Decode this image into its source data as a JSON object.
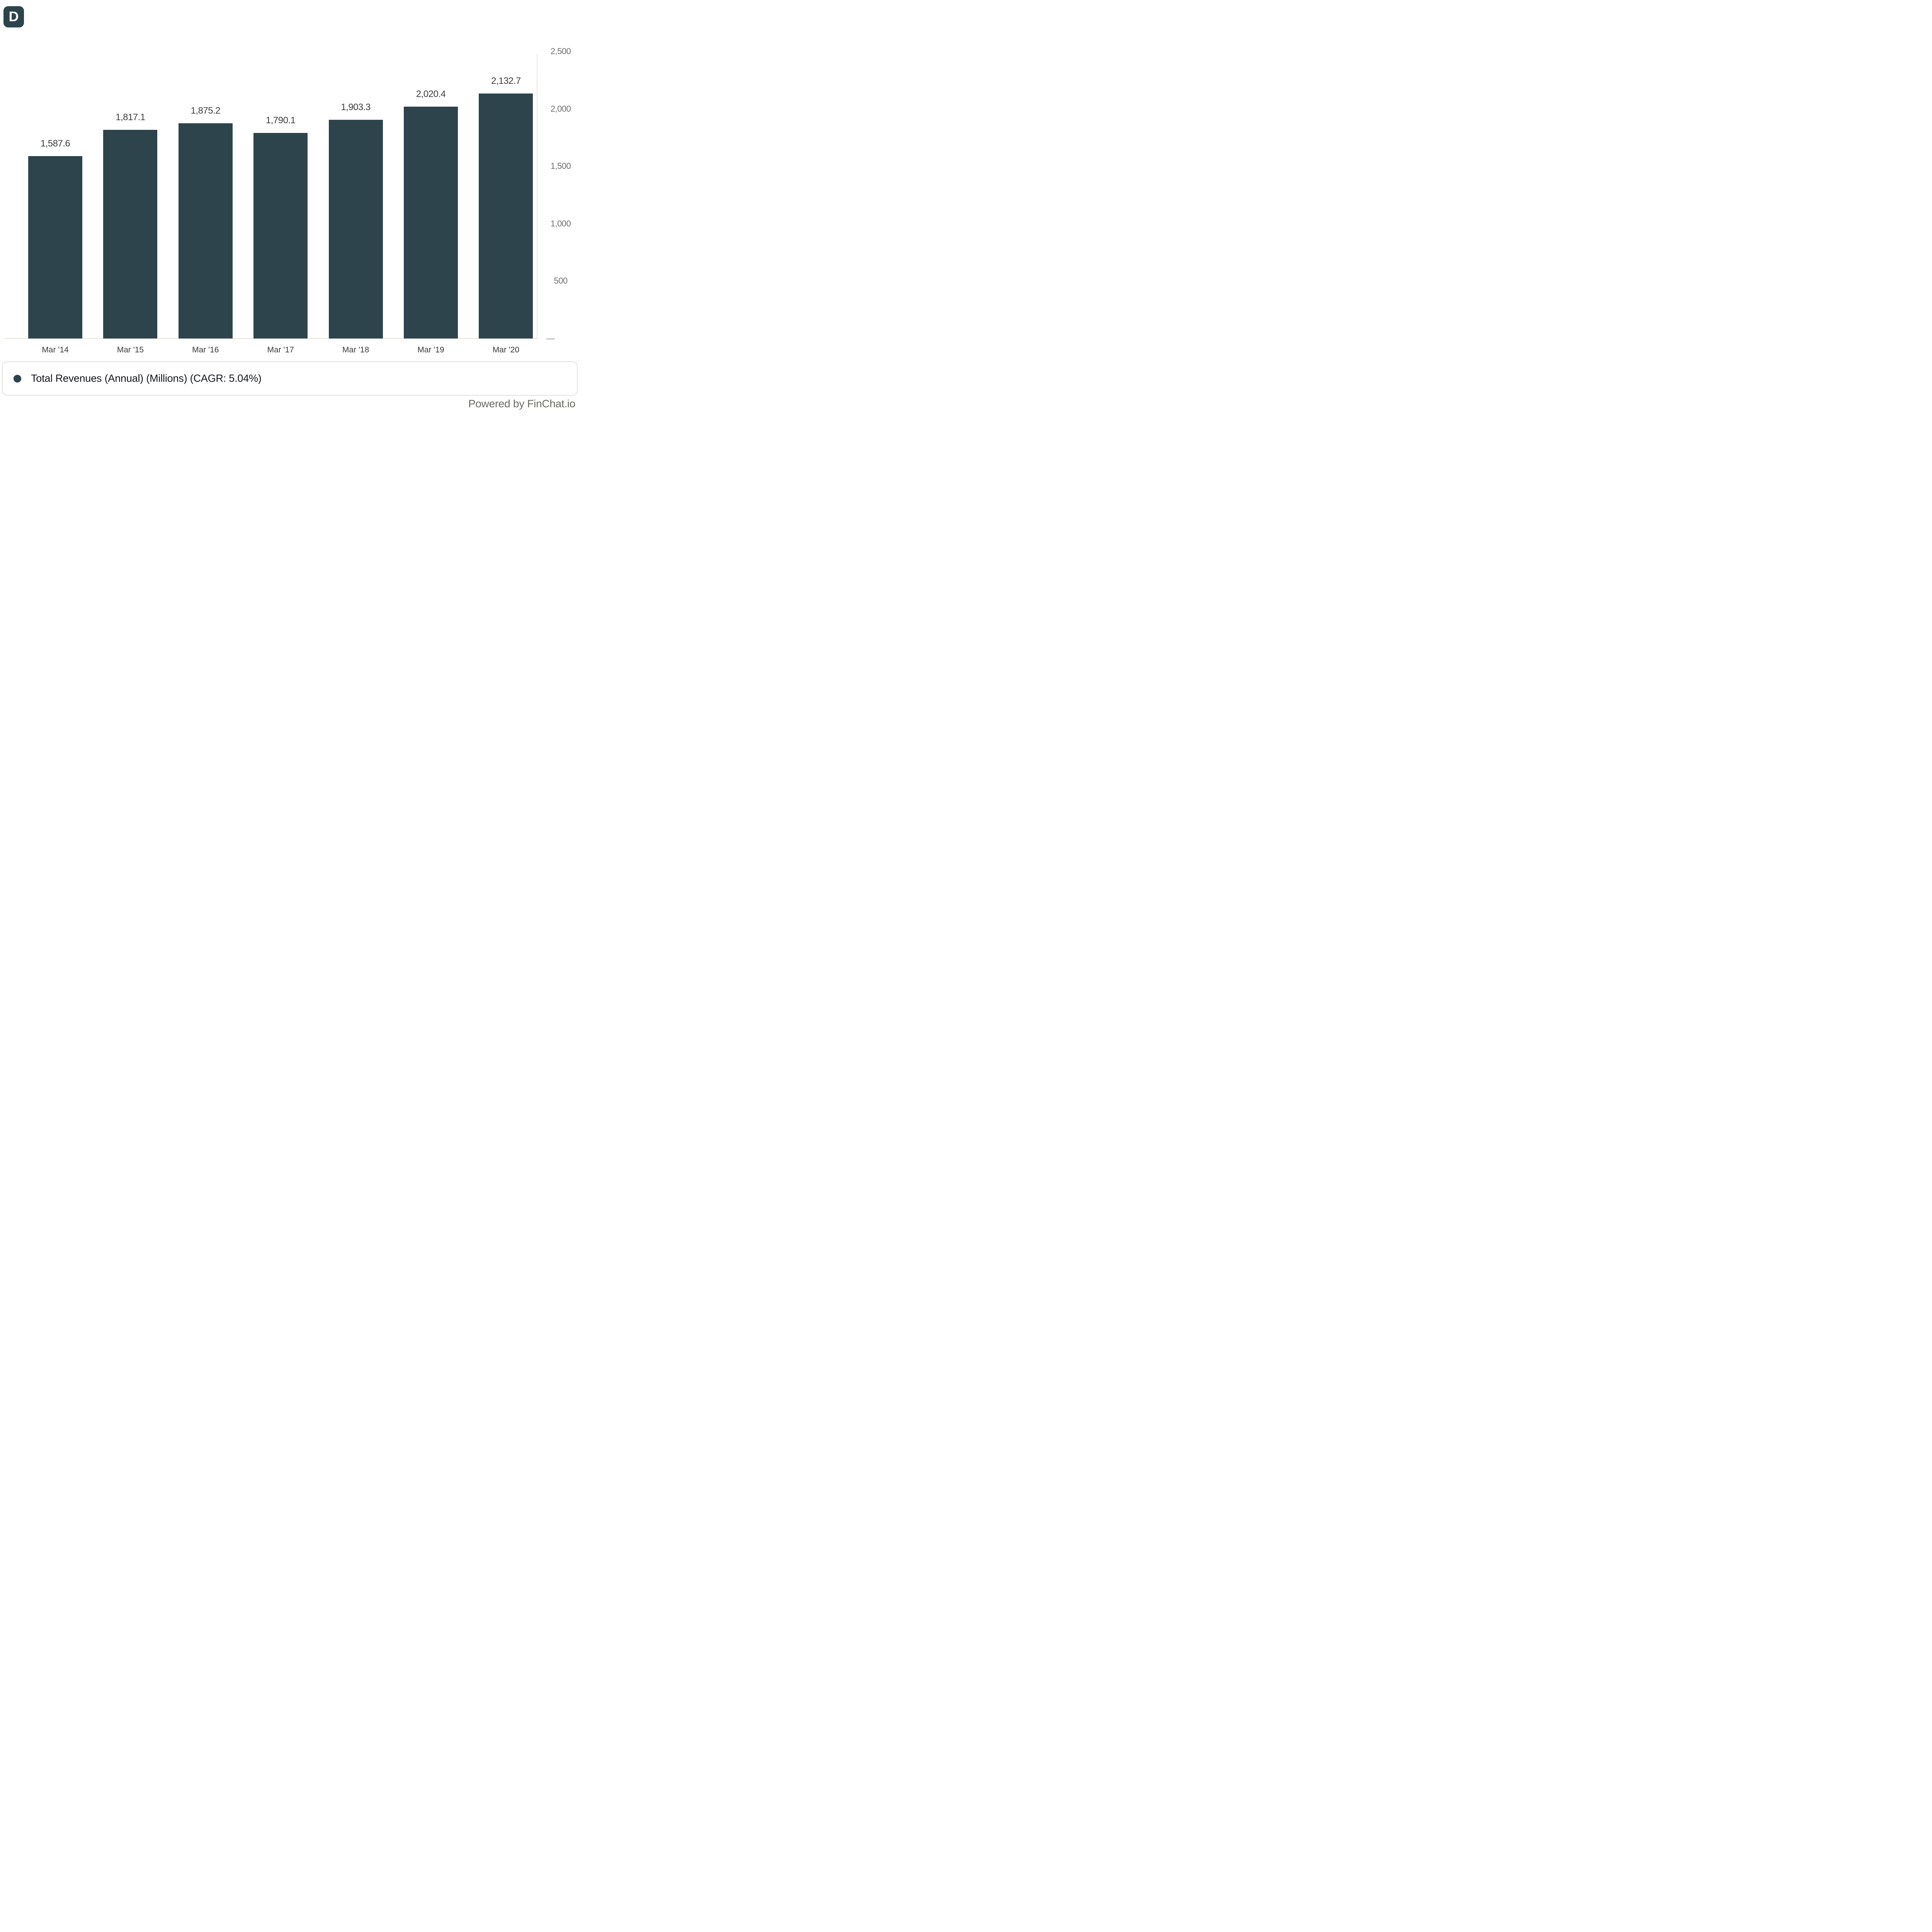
{
  "logo": {
    "letter": "D",
    "background_color": "#2d444c"
  },
  "chart_data": {
    "type": "bar",
    "title": "",
    "xlabel": "",
    "ylabel": "",
    "categories": [
      "Mar '14",
      "Mar '15",
      "Mar '16",
      "Mar '17",
      "Mar '18",
      "Mar '19",
      "Mar '20"
    ],
    "values": [
      1587.6,
      1817.1,
      1875.2,
      1790.1,
      1903.3,
      2020.4,
      2132.7
    ],
    "value_labels": [
      "1,587.6",
      "1,817.1",
      "1,875.2",
      "1,790.1",
      "1,903.3",
      "2,020.4",
      "2,132.7"
    ],
    "series_name": "Total Revenues (Annual) (Millions) (CAGR: 5.04%)",
    "ylim": [
      0,
      2500
    ],
    "y_ticks": [
      2500,
      2000,
      1500,
      1000,
      500
    ],
    "y_tick_labels": [
      "2,500",
      "2,000",
      "1,500",
      "1,000",
      "500"
    ],
    "zero_tick_label": "—",
    "bar_color": "#2d444c",
    "grid": false,
    "y_axis_side": "right",
    "legend_position": "bottom"
  },
  "legend": {
    "label": "Total Revenues (Annual) (Millions) (CAGR: 5.04%)",
    "marker_color": "#2d444c"
  },
  "footer": {
    "attribution": "Powered by FinChat.io"
  }
}
